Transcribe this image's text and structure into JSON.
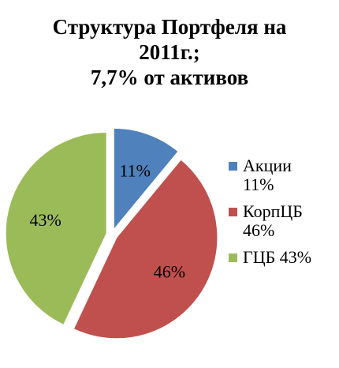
{
  "chart_data": {
    "type": "pie",
    "title_lines": [
      "Структура Портфеля на",
      "2011г.;",
      "7,7% от активов"
    ],
    "slices": [
      {
        "label": "Акции",
        "value": 11,
        "display": "11%",
        "legend": [
          "Акции",
          "11%"
        ],
        "color": "#4f81bd"
      },
      {
        "label": "КорпЦБ",
        "value": 46,
        "display": "46%",
        "legend": [
          "КорпЦБ",
          "46%"
        ],
        "color": "#c0504d"
      },
      {
        "label": "ГЦБ",
        "value": 43,
        "display": "43%",
        "legend": [
          "ГЦБ 43%"
        ],
        "color": "#9bbb59"
      }
    ],
    "legend_position": "right",
    "exploded": true
  }
}
